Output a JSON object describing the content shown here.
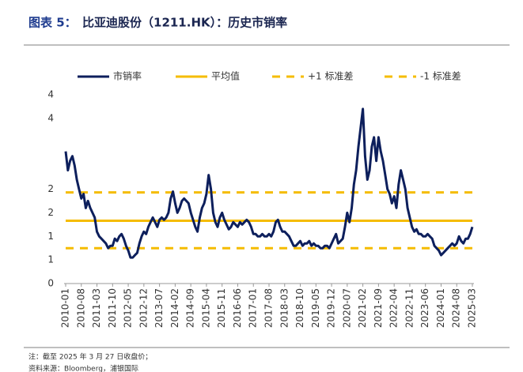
{
  "chart_data": {
    "type": "line",
    "figure_label": "图表 5：",
    "title": "比亚迪股份（1211.HK）：历史市销率",
    "note": "注：截至 2025 年 3 月 27 日收盘价；",
    "source": "资料来源：Bloomberg，浦银国际",
    "categories": [
      "2010-01",
      null,
      null,
      null,
      null,
      null,
      null,
      "2010-08",
      null,
      null,
      null,
      null,
      null,
      null,
      "2011-03",
      null,
      null,
      null,
      null,
      null,
      null,
      "2011-10",
      null,
      null,
      null,
      null,
      null,
      null,
      "2012-05",
      null,
      null,
      null,
      null,
      null,
      null,
      "2012-12",
      null,
      null,
      null,
      null,
      null,
      null,
      "2013-07",
      null,
      null,
      null,
      null,
      null,
      null,
      "2014-02",
      null,
      null,
      null,
      null,
      null,
      null,
      "2014-09",
      null,
      null,
      null,
      null,
      null,
      null,
      "2015-04",
      null,
      null,
      null,
      null,
      null,
      null,
      "2015-11",
      null,
      null,
      null,
      null,
      null,
      null,
      "2016-06",
      null,
      null,
      null,
      null,
      null,
      null,
      "2017-01",
      null,
      null,
      null,
      null,
      null,
      null,
      "2017-08",
      null,
      null,
      null,
      null,
      null,
      null,
      "2018-03",
      null,
      null,
      null,
      null,
      null,
      null,
      "2018-10",
      null,
      null,
      null,
      null,
      null,
      null,
      "2019-05",
      null,
      null,
      null,
      null,
      null,
      null,
      "2019-12",
      null,
      null,
      null,
      null,
      null,
      null,
      "2020-07",
      null,
      null,
      null,
      null,
      null,
      null,
      "2021-02",
      null,
      null,
      null,
      null,
      null,
      null,
      "2021-09",
      null,
      null,
      null,
      null,
      null,
      null,
      "2022-04",
      null,
      null,
      null,
      null,
      null,
      null,
      "2022-11",
      null,
      null,
      null,
      null,
      null,
      null,
      "2023-06",
      null,
      null,
      null,
      null,
      null,
      null,
      "2024-01",
      null,
      null,
      null,
      null,
      null,
      null,
      "2024-08",
      null,
      null,
      null,
      null,
      null,
      null,
      "2025-03"
    ],
    "series": [
      {
        "name": "市销率",
        "color": "#0d1f5c",
        "values": [
          2.8,
          2.4,
          2.6,
          2.7,
          2.5,
          2.2,
          2.0,
          1.8,
          1.9,
          1.6,
          1.75,
          1.6,
          1.5,
          1.4,
          1.1,
          1.0,
          0.95,
          0.9,
          0.85,
          0.75,
          0.8,
          0.8,
          0.95,
          0.9,
          1.0,
          1.05,
          0.95,
          0.8,
          0.7,
          0.55,
          0.55,
          0.6,
          0.65,
          0.85,
          1.0,
          1.1,
          1.05,
          1.2,
          1.3,
          1.4,
          1.3,
          1.2,
          1.35,
          1.4,
          1.35,
          1.4,
          1.5,
          1.8,
          1.95,
          1.7,
          1.5,
          1.6,
          1.75,
          1.8,
          1.75,
          1.7,
          1.5,
          1.35,
          1.2,
          1.1,
          1.4,
          1.6,
          1.7,
          1.9,
          2.3,
          2.0,
          1.5,
          1.3,
          1.2,
          1.4,
          1.5,
          1.35,
          1.25,
          1.15,
          1.2,
          1.3,
          1.25,
          1.2,
          1.3,
          1.25,
          1.3,
          1.35,
          1.3,
          1.2,
          1.05,
          1.05,
          1.0,
          1.0,
          1.05,
          1.0,
          1.0,
          1.05,
          1.0,
          1.1,
          1.3,
          1.35,
          1.2,
          1.1,
          1.1,
          1.05,
          1.0,
          0.9,
          0.8,
          0.8,
          0.85,
          0.9,
          0.8,
          0.85,
          0.85,
          0.9,
          0.8,
          0.85,
          0.8,
          0.8,
          0.75,
          0.75,
          0.8,
          0.8,
          0.75,
          0.85,
          0.95,
          1.05,
          0.85,
          0.9,
          0.95,
          1.2,
          1.5,
          1.3,
          1.6,
          2.1,
          2.4,
          2.9,
          3.3,
          3.7,
          2.7,
          2.2,
          2.4,
          2.9,
          3.1,
          2.6,
          3.1,
          2.8,
          2.6,
          2.3,
          2.0,
          1.9,
          1.7,
          1.85,
          1.6,
          2.1,
          2.4,
          2.2,
          2.0,
          1.6,
          1.4,
          1.2,
          1.1,
          1.15,
          1.05,
          1.05,
          1.0,
          1.0,
          1.05,
          1.0,
          0.95,
          0.8,
          0.75,
          0.7,
          0.6,
          0.65,
          0.7,
          0.75,
          0.8,
          0.85,
          0.8,
          0.85,
          1.0,
          0.9,
          0.85,
          0.95,
          0.95,
          1.05,
          1.2
        ]
      }
    ],
    "reference_lines": [
      {
        "name": "平均值",
        "color": "#f5bc00",
        "value": 1.33,
        "dash": false
      },
      {
        "name": "+1 标准差",
        "color": "#f5bc00",
        "value": 1.93,
        "dash": true
      },
      {
        "name": "-1 标准差",
        "color": "#f5bc00",
        "value": 0.75,
        "dash": true
      }
    ],
    "ylim": [
      0,
      4
    ],
    "yticks": [
      0,
      {
        "value": 0.5,
        "label": "1"
      },
      1,
      {
        "value": 1.5,
        "label": "2"
      },
      2,
      {
        "value": 3.5,
        "label": "4"
      },
      4
    ],
    "legend": "top"
  }
}
